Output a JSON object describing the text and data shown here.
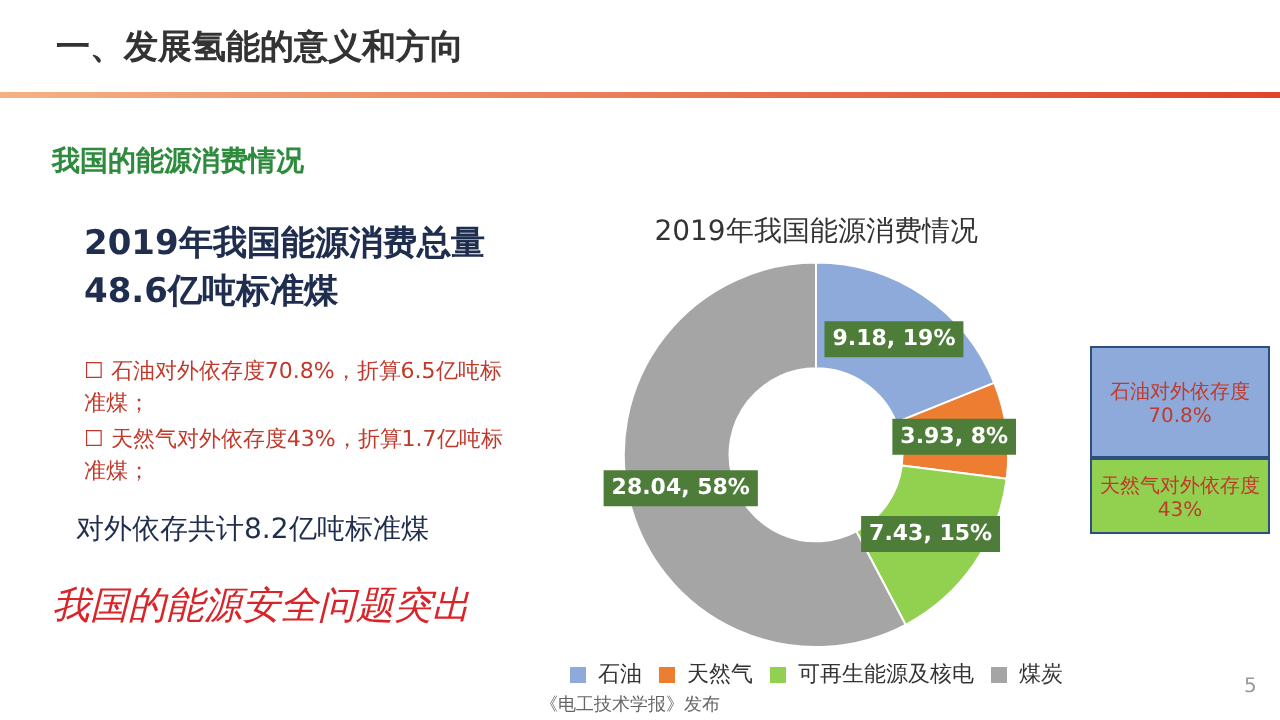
{
  "chart_data": {
    "type": "donut",
    "title": "一、发展氢能的意义和方向",
    "subtitle": "我国的能源消费情况",
    "legend_title": "2019年我国能源消费情况",
    "categories": [
      "石油",
      "天然气",
      "可再生能源及核电",
      "煤炭"
    ],
    "values": [
      9.18,
      3.93,
      7.43,
      28.04
    ],
    "colors": [
      "#8eaadb",
      "#ed7d31",
      "#92d050",
      "#a5a5a5"
    ],
    "value_labels": [
      "9.18, 19%",
      "3.93, 8%",
      "7.43, 15%",
      "28.04, 58%"
    ],
    "legend": "bottom",
    "annotations": [
      "2019年我国能源消费总量48.6亿吨标准煤",
      "☐ 石油对外依存度70.8%，折算6.5亿吨标准煤；",
      "☐ 天然气对外依存度43%，折算1.7亿吨标准煤；",
      "对外依存共计8.2亿吨标准煤",
      "我国的能源安全问题突出",
      "石油对外依存度70.8%",
      "天然气对外依存度43%",
      "《电工技术学报》发布",
      "5"
    ]
  }
}
